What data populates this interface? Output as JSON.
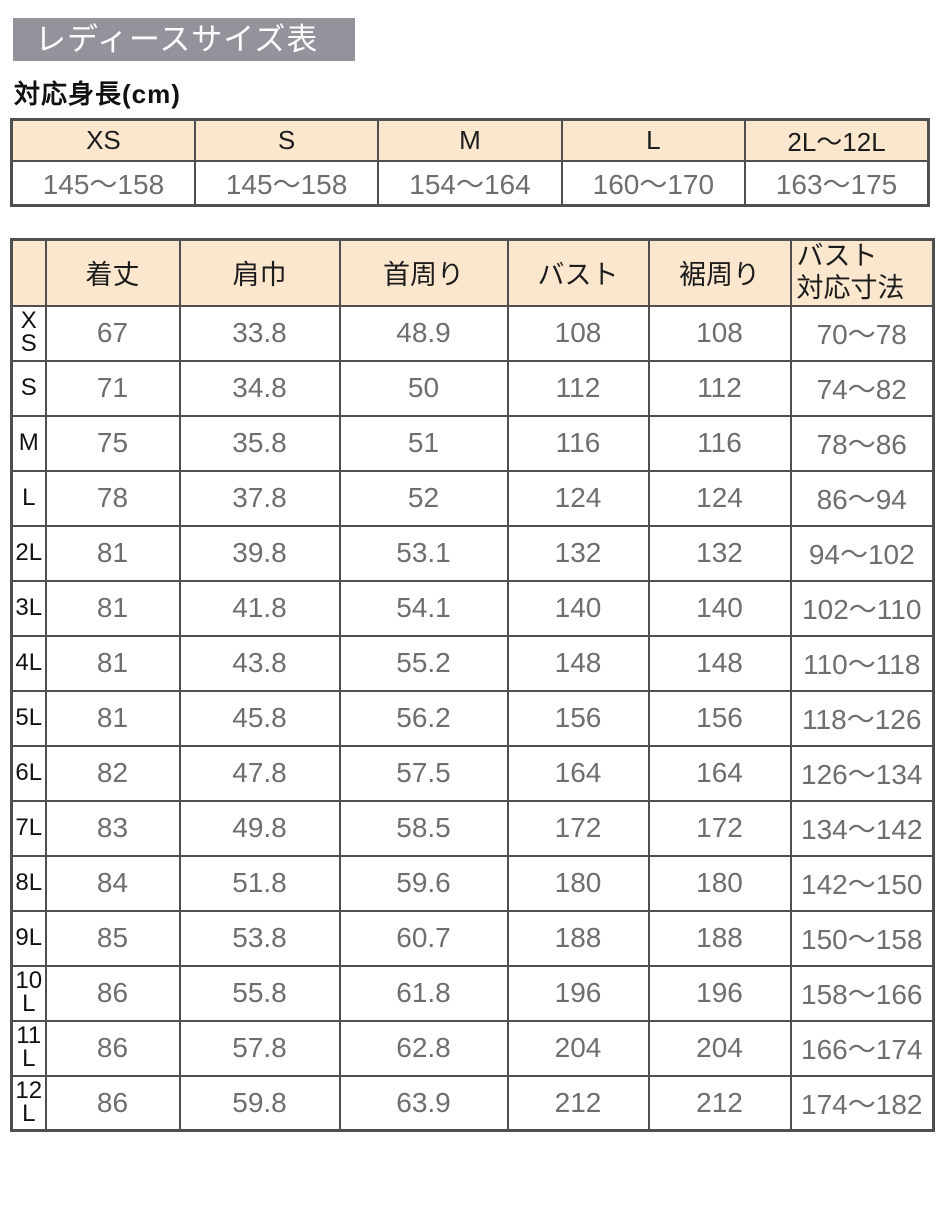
{
  "page": {
    "title": "レディースサイズ表",
    "height_label": "対応身長(cm)"
  },
  "colors": {
    "title_bg": "#96929c",
    "header_bg": "#fbe6ce",
    "border": "#4f4f4f",
    "value_text": "#6e6e6e",
    "heading_text": "#1c1c1c"
  },
  "height_table": {
    "columns": [
      "XS",
      "S",
      "M",
      "L",
      "2L～12L"
    ],
    "values": [
      "145～158",
      "145～158",
      "154～164",
      "160～170",
      "163～175"
    ]
  },
  "size_table": {
    "columns": [
      "",
      "着丈",
      "肩巾",
      "首周り",
      "バスト",
      "裾周り",
      "バスト\n対応寸法"
    ],
    "rows": [
      {
        "size": "XS",
        "values": [
          "67",
          "33.8",
          "48.9",
          "108",
          "108",
          "70～78"
        ]
      },
      {
        "size": "S",
        "values": [
          "71",
          "34.8",
          "50",
          "112",
          "112",
          "74～82"
        ]
      },
      {
        "size": "M",
        "values": [
          "75",
          "35.8",
          "51",
          "116",
          "116",
          "78～86"
        ]
      },
      {
        "size": "L",
        "values": [
          "78",
          "37.8",
          "52",
          "124",
          "124",
          "86～94"
        ]
      },
      {
        "size": "2L",
        "values": [
          "81",
          "39.8",
          "53.1",
          "132",
          "132",
          "94～102"
        ]
      },
      {
        "size": "3L",
        "values": [
          "81",
          "41.8",
          "54.1",
          "140",
          "140",
          "102～110"
        ]
      },
      {
        "size": "4L",
        "values": [
          "81",
          "43.8",
          "55.2",
          "148",
          "148",
          "110～118"
        ]
      },
      {
        "size": "5L",
        "values": [
          "81",
          "45.8",
          "56.2",
          "156",
          "156",
          "118～126"
        ]
      },
      {
        "size": "6L",
        "values": [
          "82",
          "47.8",
          "57.5",
          "164",
          "164",
          "126～134"
        ]
      },
      {
        "size": "7L",
        "values": [
          "83",
          "49.8",
          "58.5",
          "172",
          "172",
          "134～142"
        ]
      },
      {
        "size": "8L",
        "values": [
          "84",
          "51.8",
          "59.6",
          "180",
          "180",
          "142～150"
        ]
      },
      {
        "size": "9L",
        "values": [
          "85",
          "53.8",
          "60.7",
          "188",
          "188",
          "150～158"
        ]
      },
      {
        "size": "10L",
        "values": [
          "86",
          "55.8",
          "61.8",
          "196",
          "196",
          "158～166"
        ]
      },
      {
        "size": "11L",
        "values": [
          "86",
          "57.8",
          "62.8",
          "204",
          "204",
          "166～174"
        ]
      },
      {
        "size": "12L",
        "values": [
          "86",
          "59.8",
          "63.9",
          "212",
          "212",
          "174～182"
        ]
      }
    ]
  }
}
